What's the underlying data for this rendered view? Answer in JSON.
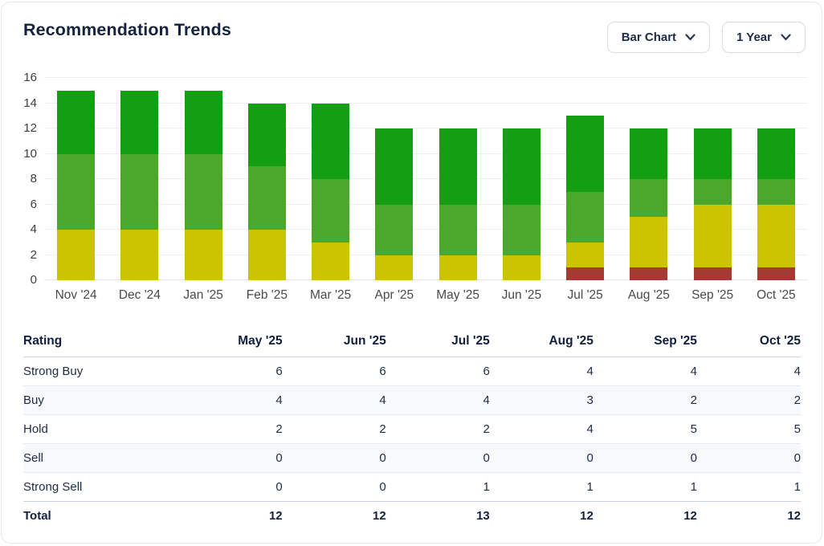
{
  "header": {
    "title": "Recommendation Trends",
    "chart_type_button": "Bar Chart",
    "period_button": "1 Year"
  },
  "chart_data": {
    "type": "bar",
    "stacked": true,
    "title": "Recommendation Trends",
    "categories": [
      "Nov '24",
      "Dec '24",
      "Jan '25",
      "Feb '25",
      "Mar '25",
      "Apr '25",
      "May '25",
      "Jun '25",
      "Jul '25",
      "Aug '25",
      "Sep '25",
      "Oct '25"
    ],
    "series": [
      {
        "name": "Strong Sell",
        "color": "#a33b32",
        "values": [
          0,
          0,
          0,
          0,
          0,
          0,
          0,
          0,
          1,
          1,
          1,
          1
        ]
      },
      {
        "name": "Sell",
        "color": "",
        "values": [
          0,
          0,
          0,
          0,
          0,
          0,
          0,
          0,
          0,
          0,
          0,
          0
        ]
      },
      {
        "name": "Hold",
        "color": "#cbc400",
        "values": [
          4,
          4,
          4,
          4,
          3,
          2,
          2,
          2,
          2,
          4,
          5,
          5
        ]
      },
      {
        "name": "Buy",
        "color": "#4ca82b",
        "values": [
          6,
          6,
          6,
          5,
          5,
          4,
          4,
          4,
          4,
          3,
          2,
          2
        ]
      },
      {
        "name": "Strong Buy",
        "color": "#149e14",
        "values": [
          5,
          5,
          5,
          5,
          6,
          6,
          6,
          6,
          6,
          4,
          4,
          4
        ]
      }
    ],
    "totals": [
      15,
      15,
      15,
      14,
      14,
      12,
      12,
      12,
      13,
      12,
      12,
      12
    ],
    "ylim": [
      0,
      16
    ],
    "yticks": [
      0,
      2,
      4,
      6,
      8,
      10,
      12,
      14,
      16
    ],
    "grid": true,
    "legend": "none"
  },
  "table": {
    "columns": [
      "Rating",
      "May '25",
      "Jun '25",
      "Jul '25",
      "Aug '25",
      "Sep '25",
      "Oct '25"
    ],
    "rows": [
      {
        "label": "Strong Buy",
        "values": [
          "6",
          "6",
          "6",
          "4",
          "4",
          "4"
        ]
      },
      {
        "label": "Buy",
        "values": [
          "4",
          "4",
          "4",
          "3",
          "2",
          "2"
        ]
      },
      {
        "label": "Hold",
        "values": [
          "2",
          "2",
          "2",
          "4",
          "5",
          "5"
        ]
      },
      {
        "label": "Sell",
        "values": [
          "0",
          "0",
          "0",
          "0",
          "0",
          "0"
        ]
      },
      {
        "label": "Strong Sell",
        "values": [
          "0",
          "0",
          "1",
          "1",
          "1",
          "1"
        ]
      },
      {
        "label": "Total",
        "values": [
          "12",
          "12",
          "13",
          "12",
          "12",
          "12"
        ],
        "bold": true
      }
    ]
  },
  "colors": {
    "strong_buy": "#149e14",
    "buy": "#4ca82b",
    "hold": "#cbc400",
    "strong_sell": "#a33b32",
    "title_text": "#16233e",
    "axis_text": "#3d3d3d",
    "card_border": "#e5e7eb",
    "alt_row_bg": "#f7f9fc"
  }
}
